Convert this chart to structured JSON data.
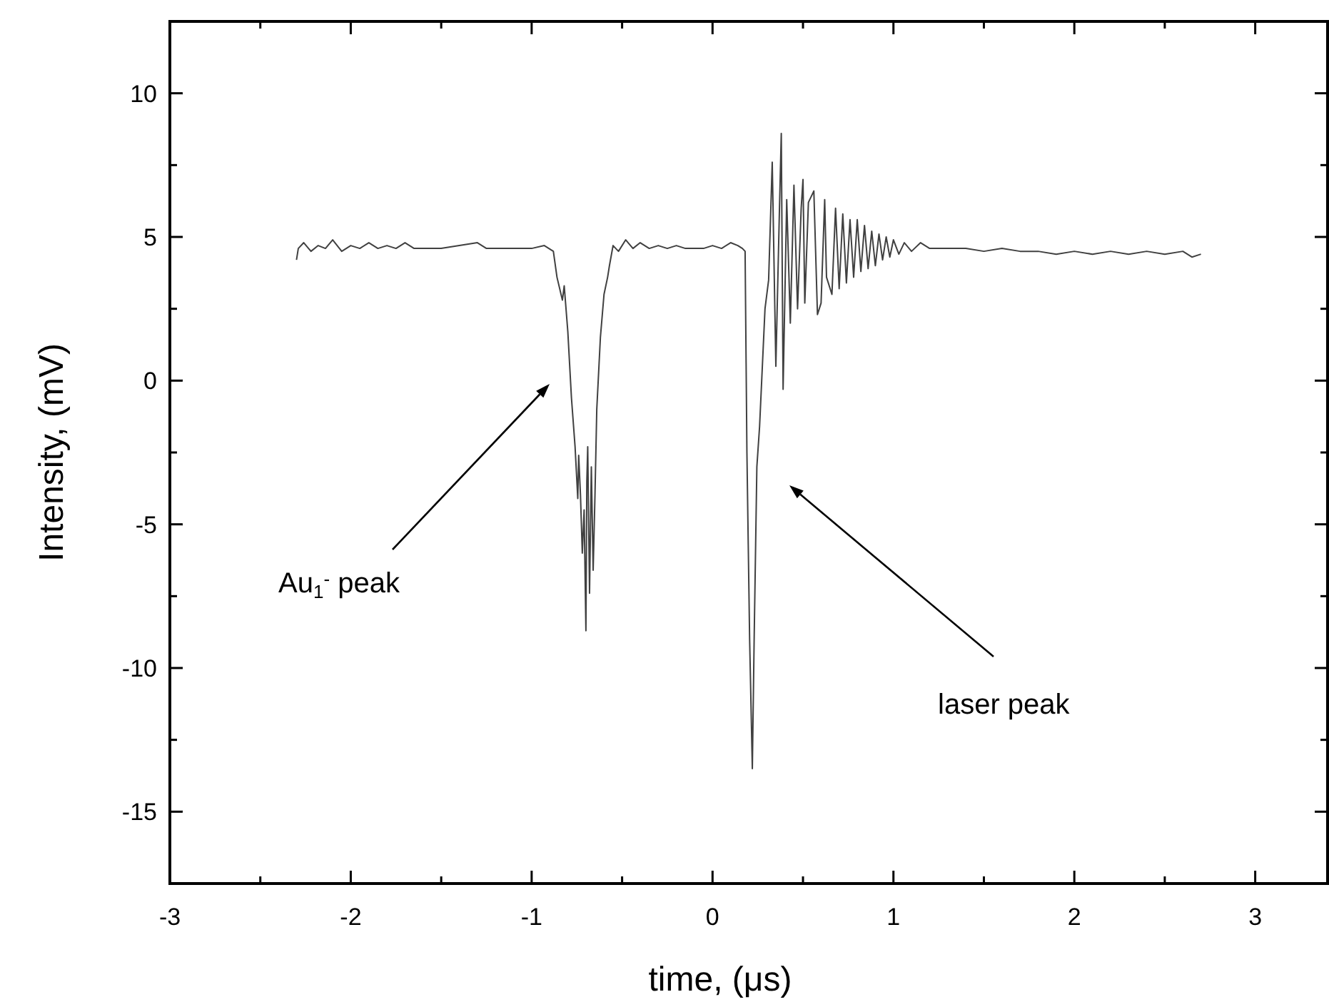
{
  "chart_data": {
    "type": "line",
    "xlabel": "time, (μs)",
    "ylabel": "Intensity, (mV)",
    "xlim": [
      -3,
      3.4
    ],
    "ylim": [
      -17.5,
      12.5
    ],
    "xticks": [
      -3,
      {
        "value": -2.5,
        "label": null
      },
      -2,
      {
        "value": -1.5,
        "label": null
      },
      -1,
      {
        "value": -0.5,
        "label": null
      },
      0,
      {
        "value": 0.5,
        "label": null
      },
      1,
      {
        "value": 1.5,
        "label": null
      },
      2,
      {
        "value": 2.5,
        "label": null
      },
      3
    ],
    "yticks": [
      {
        "value": -17.5,
        "label": null
      },
      -15,
      {
        "value": -12.5,
        "label": null
      },
      -10,
      {
        "value": -7.5,
        "label": null
      },
      -5,
      {
        "value": -2.5,
        "label": null
      },
      0,
      {
        "value": 2.5,
        "label": null
      },
      5,
      {
        "value": 7.5,
        "label": null
      },
      10,
      {
        "value": 12.5,
        "label": null
      }
    ],
    "grid": false,
    "marker": "none",
    "line_style": "solid",
    "series": [
      {
        "color": "#404040",
        "x": [
          -2.3,
          -2.29,
          -2.26,
          -2.22,
          -2.18,
          -2.14,
          -2.1,
          -2.05,
          -2.0,
          -1.95,
          -1.9,
          -1.85,
          -1.8,
          -1.75,
          -1.7,
          -1.65,
          -1.6,
          -1.55,
          -1.5,
          -1.4,
          -1.3,
          -1.25,
          -1.2,
          -1.1,
          -1.0,
          -0.93,
          -0.88,
          -0.86,
          -0.83,
          -0.82,
          -0.8,
          -0.78,
          -0.76,
          -0.745,
          -0.74,
          -0.73,
          -0.72,
          -0.71,
          -0.7,
          -0.695,
          -0.69,
          -0.68,
          -0.67,
          -0.66,
          -0.65,
          -0.64,
          -0.62,
          -0.6,
          -0.58,
          -0.57,
          -0.55,
          -0.52,
          -0.48,
          -0.44,
          -0.4,
          -0.35,
          -0.3,
          -0.25,
          -0.2,
          -0.15,
          -0.1,
          -0.05,
          0.0,
          0.05,
          0.1,
          0.14,
          0.165,
          0.18,
          0.19,
          0.205,
          0.22,
          0.23,
          0.245,
          0.26,
          0.29,
          0.31,
          0.33,
          0.35,
          0.37,
          0.38,
          0.39,
          0.41,
          0.43,
          0.45,
          0.47,
          0.49,
          0.5,
          0.51,
          0.53,
          0.56,
          0.58,
          0.6,
          0.62,
          0.63,
          0.66,
          0.68,
          0.7,
          0.72,
          0.74,
          0.76,
          0.78,
          0.8,
          0.82,
          0.84,
          0.86,
          0.88,
          0.9,
          0.92,
          0.94,
          0.96,
          0.98,
          1.0,
          1.03,
          1.06,
          1.1,
          1.15,
          1.2,
          1.3,
          1.4,
          1.5,
          1.6,
          1.7,
          1.8,
          1.9,
          2.0,
          2.1,
          2.2,
          2.3,
          2.4,
          2.5,
          2.6,
          2.65,
          2.7
        ],
        "values": [
          4.2,
          4.6,
          4.8,
          4.5,
          4.7,
          4.6,
          4.9,
          4.5,
          4.7,
          4.6,
          4.8,
          4.6,
          4.7,
          4.6,
          4.8,
          4.6,
          4.6,
          4.6,
          4.6,
          4.7,
          4.8,
          4.6,
          4.6,
          4.6,
          4.6,
          4.7,
          4.5,
          3.6,
          2.8,
          3.3,
          1.7,
          -0.6,
          -2.3,
          -4.1,
          -2.6,
          -4.0,
          -6.0,
          -4.5,
          -8.7,
          -3.5,
          -2.3,
          -7.4,
          -3.0,
          -6.6,
          -4.0,
          -1.0,
          1.5,
          3.0,
          3.6,
          4.0,
          4.7,
          4.5,
          4.9,
          4.6,
          4.8,
          4.6,
          4.7,
          4.6,
          4.7,
          4.6,
          4.6,
          4.6,
          4.7,
          4.6,
          4.8,
          4.7,
          4.6,
          4.5,
          -2.5,
          -9.0,
          -13.5,
          -9.0,
          -3.0,
          -1.6,
          2.5,
          3.5,
          7.6,
          0.5,
          6.0,
          8.6,
          -0.3,
          6.3,
          2.0,
          6.8,
          2.5,
          6.0,
          7.0,
          2.7,
          6.2,
          6.6,
          2.3,
          2.7,
          6.3,
          3.6,
          3.0,
          6.0,
          3.2,
          5.8,
          3.4,
          5.6,
          3.6,
          5.6,
          3.8,
          5.4,
          3.9,
          5.2,
          4.0,
          5.1,
          4.2,
          5.0,
          4.3,
          4.9,
          4.4,
          4.8,
          4.5,
          4.8,
          4.6,
          4.6,
          4.6,
          4.5,
          4.6,
          4.5,
          4.5,
          4.4,
          4.5,
          4.4,
          4.5,
          4.4,
          4.5,
          4.4,
          4.5,
          4.3,
          4.4
        ]
      }
    ],
    "annotations": [
      "Au$_{1}$$^{-}$ peak",
      "laser peak"
    ]
  }
}
